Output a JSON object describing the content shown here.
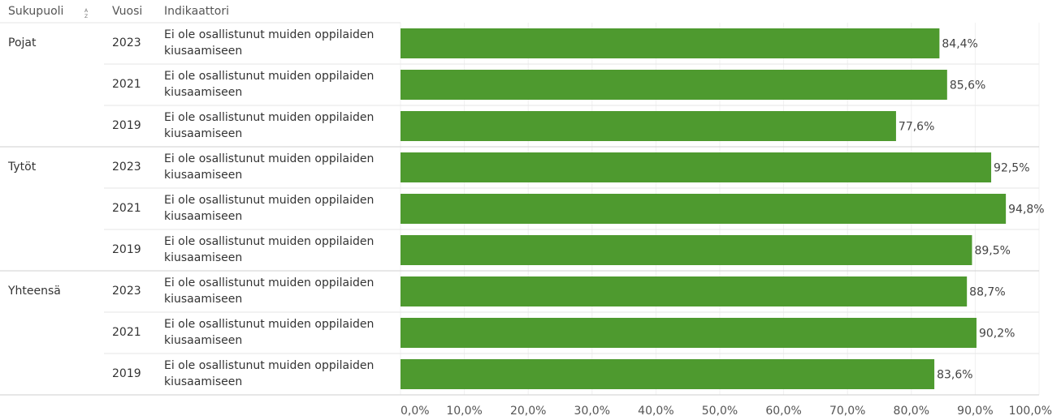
{
  "headers": {
    "sukupuoli": "Sukupuoli",
    "vuosi": "Vuosi",
    "indikaattori": "Indikaattori"
  },
  "sort_icon": "sort-alpha-icon",
  "colors": {
    "bar": "#4e9a2f"
  },
  "chart_data": {
    "type": "bar",
    "orientation": "horizontal",
    "xlim": [
      0,
      100
    ],
    "x_ticks": [
      "0,0%",
      "10,0%",
      "20,0%",
      "30,0%",
      "40,0%",
      "50,0%",
      "60,0%",
      "70,0%",
      "80,0%",
      "90,0%",
      "100,0%"
    ],
    "groups": [
      {
        "name": "Pojat",
        "rows": [
          {
            "year": "2023",
            "indicator": "Ei ole osallistunut muiden oppilaiden kiusaamiseen",
            "value": 84.4,
            "label": "84,4%"
          },
          {
            "year": "2021",
            "indicator": "Ei ole osallistunut muiden oppilaiden kiusaamiseen",
            "value": 85.6,
            "label": "85,6%"
          },
          {
            "year": "2019",
            "indicator": "Ei ole osallistunut muiden oppilaiden kiusaamiseen",
            "value": 77.6,
            "label": "77,6%"
          }
        ]
      },
      {
        "name": "Tytöt",
        "rows": [
          {
            "year": "2023",
            "indicator": "Ei ole osallistunut muiden oppilaiden kiusaamiseen",
            "value": 92.5,
            "label": "92,5%"
          },
          {
            "year": "2021",
            "indicator": "Ei ole osallistunut muiden oppilaiden kiusaamiseen",
            "value": 94.8,
            "label": "94,8%"
          },
          {
            "year": "2019",
            "indicator": "Ei ole osallistunut muiden oppilaiden kiusaamiseen",
            "value": 89.5,
            "label": "89,5%"
          }
        ]
      },
      {
        "name": "Yhteensä",
        "rows": [
          {
            "year": "2023",
            "indicator": "Ei ole osallistunut muiden oppilaiden kiusaamiseen",
            "value": 88.7,
            "label": "88,7%"
          },
          {
            "year": "2021",
            "indicator": "Ei ole osallistunut muiden oppilaiden kiusaamiseen",
            "value": 90.2,
            "label": "90,2%"
          },
          {
            "year": "2019",
            "indicator": "Ei ole osallistunut muiden oppilaiden kiusaamiseen",
            "value": 83.6,
            "label": "83,6%"
          }
        ]
      }
    ]
  }
}
